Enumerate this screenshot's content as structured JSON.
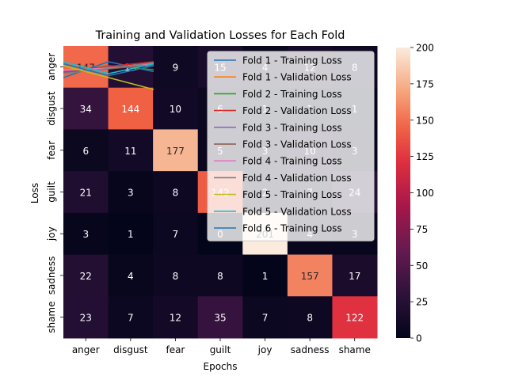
{
  "chart_data": {
    "type": "heatmap",
    "title": "Training and Validation Losses for Each Fold",
    "xlabel": "Epochs",
    "ylabel": "Loss",
    "x_categories": [
      "anger",
      "disgust",
      "fear",
      "guilt",
      "joy",
      "sadness",
      "shame"
    ],
    "y_categories": [
      "anger",
      "disgust",
      "fear",
      "guilt",
      "joy",
      "sadness",
      "shame"
    ],
    "values": [
      [
        147,
        23,
        9,
        15,
        4,
        12,
        8
      ],
      [
        34,
        144,
        10,
        6,
        1,
        1,
        1
      ],
      [
        6,
        11,
        177,
        5,
        3,
        10,
        3
      ],
      [
        21,
        3,
        8,
        142,
        2,
        7,
        24
      ],
      [
        3,
        1,
        7,
        0,
        201,
        4,
        3
      ],
      [
        22,
        4,
        8,
        8,
        1,
        157,
        17
      ],
      [
        23,
        7,
        12,
        35,
        7,
        8,
        122
      ]
    ],
    "colorbar": {
      "min": 0,
      "max": 200,
      "ticks": [
        0,
        25,
        50,
        75,
        100,
        125,
        150,
        175,
        200
      ]
    },
    "legend": {
      "placement": "top-right",
      "entries": [
        {
          "name": "Fold 1 - Training Loss",
          "color": "#1f77b4"
        },
        {
          "name": "Fold 1 - Validation Loss",
          "color": "#ff7f0e"
        },
        {
          "name": "Fold 2 - Training Loss",
          "color": "#2ca02c"
        },
        {
          "name": "Fold 2 - Validation Loss",
          "color": "#d62728"
        },
        {
          "name": "Fold 3 - Training Loss",
          "color": "#9467bd"
        },
        {
          "name": "Fold 3 - Validation Loss",
          "color": "#8c564b"
        },
        {
          "name": "Fold 4 - Training Loss",
          "color": "#e377c2"
        },
        {
          "name": "Fold 4 - Validation Loss",
          "color": "#7f7f7f"
        },
        {
          "name": "Fold 5 - Training Loss",
          "color": "#bcbd22"
        },
        {
          "name": "Fold 5 - Validation Loss",
          "color": "#17becf"
        },
        {
          "name": "Fold 6 - Training Loss",
          "color": "#1f77b4"
        }
      ]
    },
    "lines": [
      {
        "name": "Fold 1 - Training Loss",
        "color": "#1f77b4",
        "y": [
          0.6,
          1.0,
          0.75
        ]
      },
      {
        "name": "Fold 1 - Validation Loss",
        "color": "#ff7f0e",
        "y": [
          0.8,
          0.85,
          0.95
        ]
      },
      {
        "name": "Fold 2 - Training Loss",
        "color": "#2ca02c",
        "y": [
          0.7,
          0.9,
          0.8
        ]
      },
      {
        "name": "Fold 2 - Validation Loss",
        "color": "#d62728",
        "y": [
          0.75,
          0.88,
          1.0
        ]
      },
      {
        "name": "Fold 3 - Training Loss",
        "color": "#9467bd",
        "y": [
          0.72,
          0.86,
          0.9
        ]
      },
      {
        "name": "Fold 3 - Validation Loss",
        "color": "#8c564b",
        "y": [
          0.74,
          0.82,
          0.92
        ]
      },
      {
        "name": "Fold 4 - Training Loss",
        "color": "#e377c2",
        "y": [
          0.78,
          0.84,
          0.96
        ]
      },
      {
        "name": "Fold 4 - Validation Loss",
        "color": "#7f7f7f",
        "y": [
          0.7,
          0.83,
          0.98
        ]
      },
      {
        "name": "Fold 5 - Training Loss",
        "color": "#bcbd22",
        "y": [
          0.9,
          0.6,
          0.3
        ]
      },
      {
        "name": "Fold 5 - Validation Loss",
        "color": "#17becf",
        "y": [
          1.0,
          0.7,
          0.95
        ]
      },
      {
        "name": "Fold 6 - Training Loss",
        "color": "#1f77b4",
        "y": [
          0.95,
          0.65,
          0.9
        ]
      }
    ]
  }
}
